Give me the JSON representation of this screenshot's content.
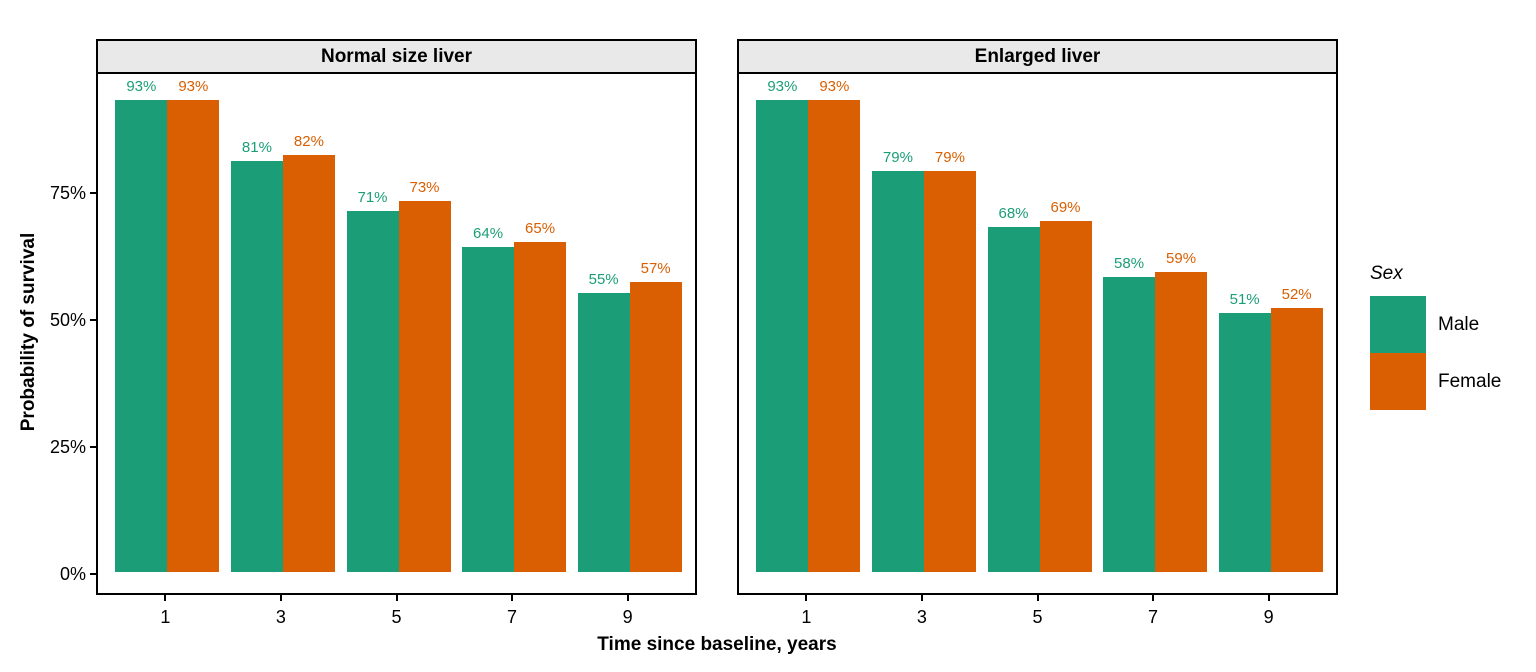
{
  "chart_data": {
    "type": "bar",
    "title": "",
    "xlabel": "Time since baseline, years",
    "ylabel": "Probability of survival",
    "value_suffix": "%",
    "grid": false,
    "legend_position": "right",
    "ylim": [
      0,
      98.5
    ],
    "y_ticks": [
      {
        "value": 0,
        "label": "0%"
      },
      {
        "value": 25,
        "label": "25%"
      },
      {
        "value": 50,
        "label": "50%"
      },
      {
        "value": 75,
        "label": "75%"
      }
    ],
    "categories": [
      "1",
      "3",
      "5",
      "7",
      "9"
    ],
    "facets": [
      {
        "label": "Normal size liver",
        "series": [
          {
            "name": "Male",
            "values": [
              93,
              81,
              71,
              64,
              55
            ]
          },
          {
            "name": "Female",
            "values": [
              93,
              82,
              73,
              65,
              57
            ]
          }
        ]
      },
      {
        "label": "Enlarged liver",
        "series": [
          {
            "name": "Male",
            "values": [
              93,
              79,
              68,
              58,
              51
            ]
          },
          {
            "name": "Female",
            "values": [
              93,
              79,
              69,
              59,
              52
            ]
          }
        ]
      }
    ],
    "legend": {
      "title": "Sex",
      "entries": [
        {
          "label": "Male",
          "color": "#1B9E77"
        },
        {
          "label": "Female",
          "color": "#D95F02"
        }
      ]
    }
  },
  "style": {
    "male_color": "#1B9E77",
    "female_color": "#D95F02",
    "strip_background": "#E9E9E9",
    "panel_border": "#000000",
    "text_color": "#000000"
  }
}
